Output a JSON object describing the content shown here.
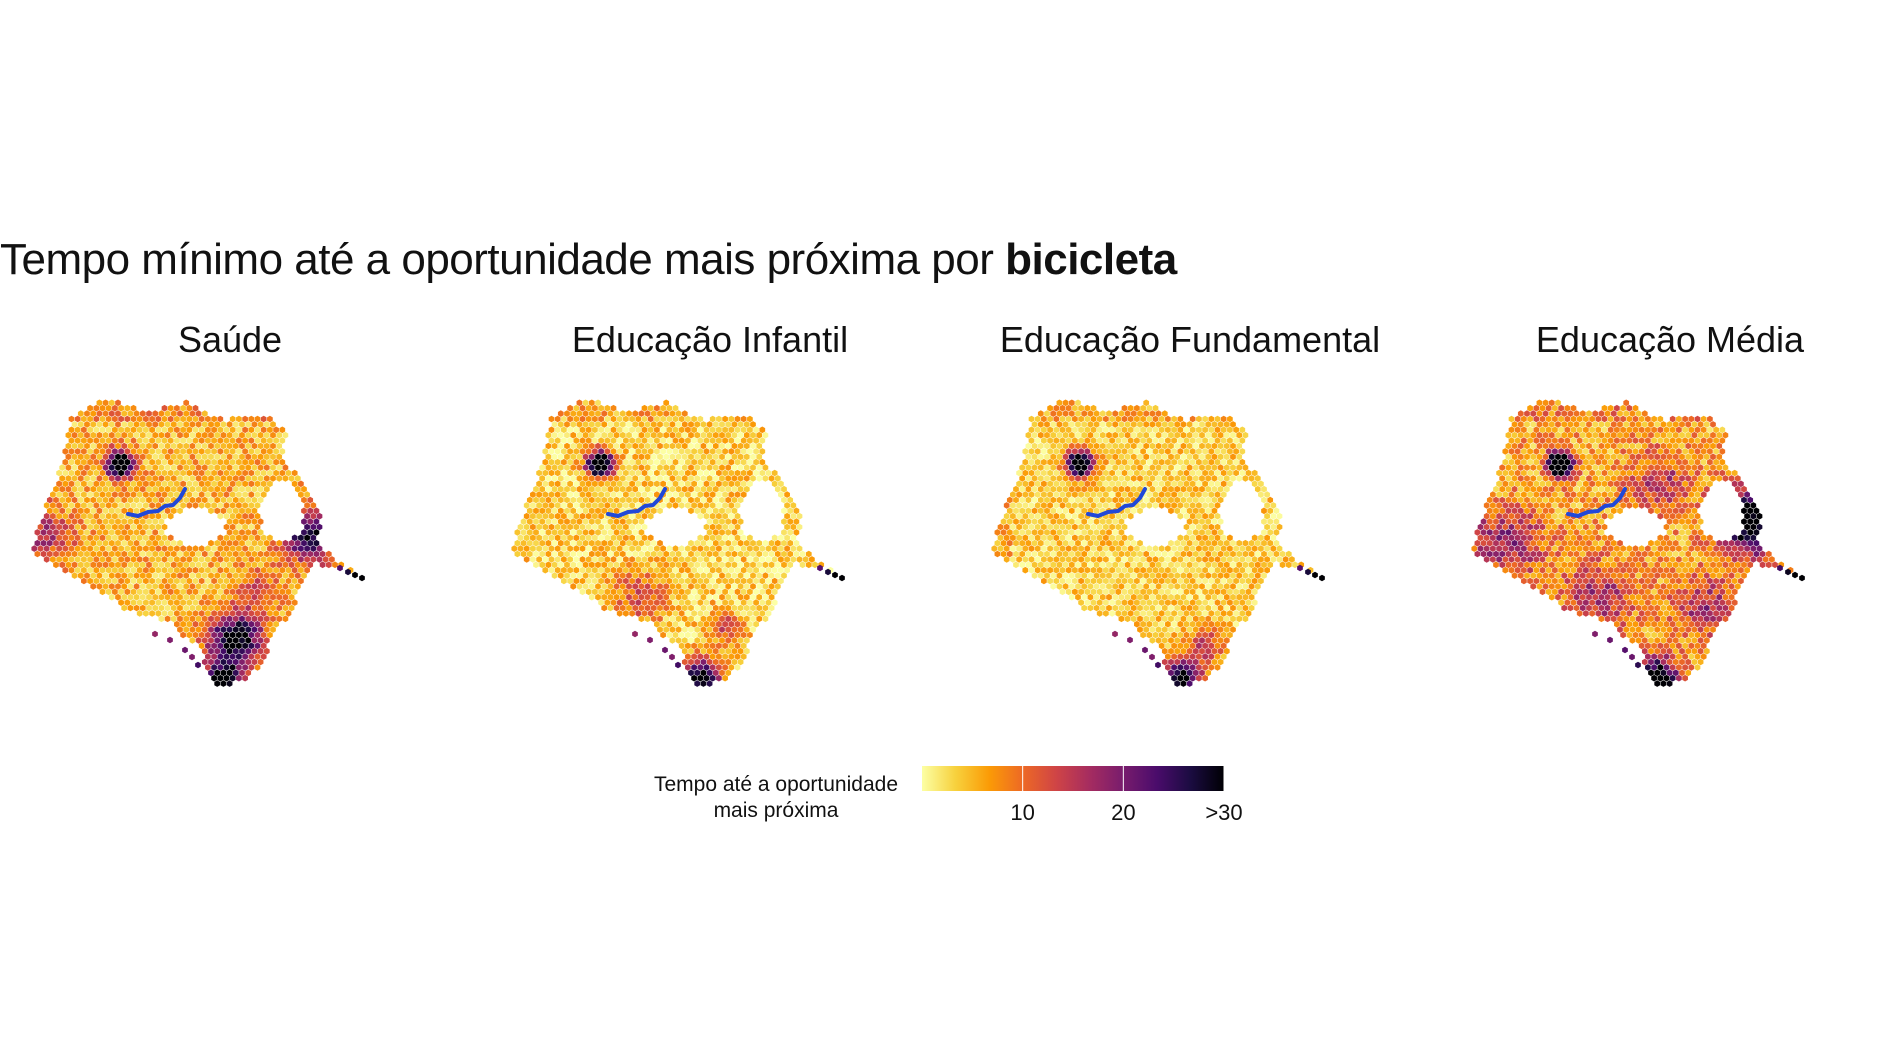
{
  "title": {
    "prefix": "Tempo mínimo até a oportunidade mais próxima por ",
    "emphasis": "bicicleta"
  },
  "panels": [
    {
      "label": "Saúde"
    },
    {
      "label": "Educação Infantil"
    },
    {
      "label": "Educação Fundamental"
    },
    {
      "label": "Educação Média"
    }
  ],
  "legend": {
    "title_line1": "Tempo até a oportunidade",
    "title_line2": "mais próxima",
    "ticks": [
      "10",
      "20",
      ">30"
    ],
    "tick_values": [
      10,
      20,
      30
    ],
    "range": [
      0,
      30
    ],
    "palette": [
      "#fcffa4",
      "#f7d13d",
      "#fb9b06",
      "#ed6925",
      "#cf4446",
      "#a52c60",
      "#781c6d",
      "#4a0c6b",
      "#1b0c41",
      "#000004"
    ]
  },
  "map_style": {
    "river_color": "#2148d8",
    "river_labels": []
  }
}
